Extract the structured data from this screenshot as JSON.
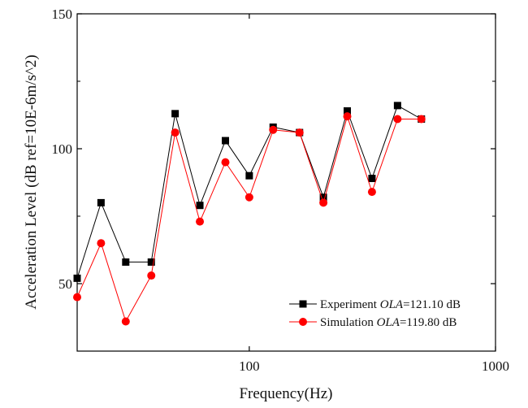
{
  "chart_data": {
    "type": "line",
    "title": "",
    "xlabel": "Frequency(Hz)",
    "ylabel": "Acceleration Level (dB ref=10E-6m/s^2)",
    "xscale": "log",
    "xlim": [
      20,
      1000
    ],
    "ylim": [
      25,
      150
    ],
    "x_ticks": [
      100,
      1000
    ],
    "x_tick_labels": [
      "100",
      "1000"
    ],
    "y_ticks": [
      50,
      100,
      150
    ],
    "y_tick_labels": [
      "50",
      "100",
      "150"
    ],
    "grid": false,
    "legend_position": "bottom-right",
    "x": [
      20,
      25,
      31.5,
      40,
      50,
      63,
      80,
      100,
      125,
      160,
      200,
      250,
      315,
      400,
      500
    ],
    "series": [
      {
        "name": "Experiment",
        "legend_prefix": "Experiment ",
        "legend_italic": "OLA",
        "legend_suffix": "=121.10 dB",
        "color": "#000000",
        "marker": "square",
        "values": [
          52,
          80,
          58,
          58,
          113,
          79,
          103,
          90,
          108,
          106,
          82,
          114,
          89,
          116,
          111
        ]
      },
      {
        "name": "Simulation",
        "legend_prefix": "Simulation  ",
        "legend_italic": "OLA",
        "legend_suffix": "=119.80 dB",
        "color": "#ff0000",
        "marker": "circle",
        "values": [
          45,
          65,
          36,
          53,
          106,
          73,
          95,
          82,
          107,
          106,
          80,
          112,
          84,
          111,
          111
        ]
      }
    ]
  }
}
